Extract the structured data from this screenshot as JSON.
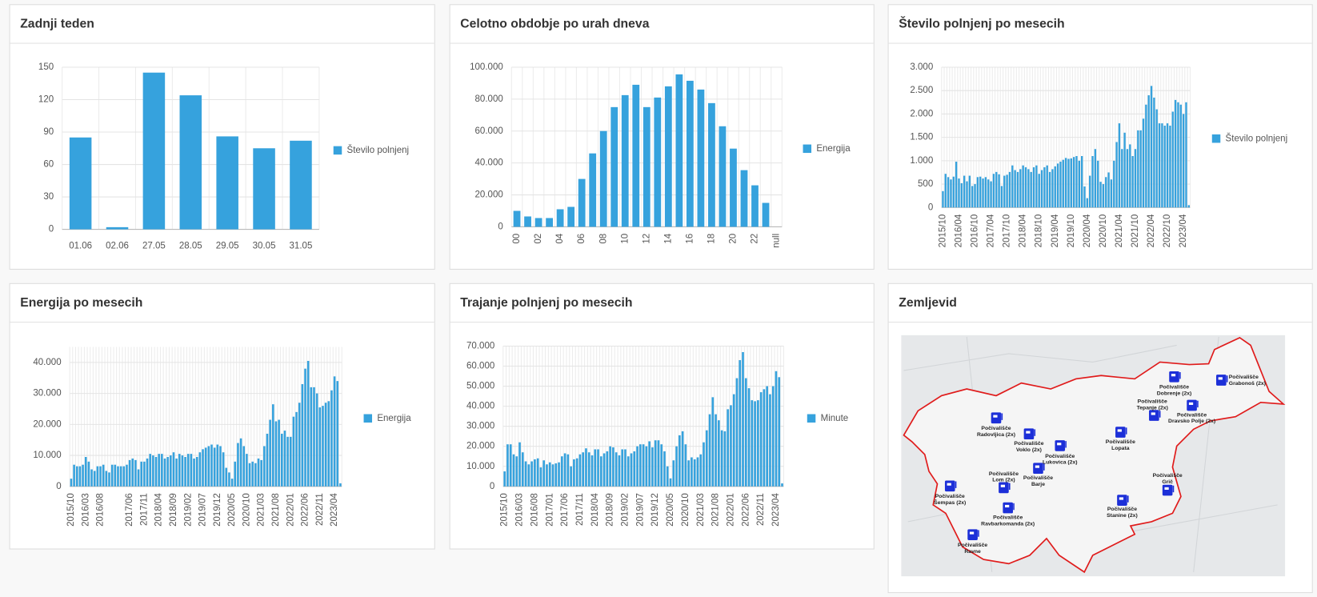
{
  "chart_data": [
    {
      "type": "bar",
      "title": "Zadnji teden",
      "categories": [
        "01.06",
        "02.06",
        "27.05",
        "28.05",
        "29.05",
        "30.05",
        "31.05"
      ],
      "series": [
        {
          "name": "Število polnjenj",
          "color": "#36a2dd",
          "values": [
            85,
            2,
            145,
            124,
            86,
            75,
            82
          ]
        }
      ],
      "ylim": [
        0,
        150
      ],
      "yticks": [
        0,
        30,
        60,
        90,
        120,
        150
      ],
      "grid": true,
      "legend": "right"
    },
    {
      "type": "bar",
      "title": "Celotno obdobje po urah dneva",
      "categories": [
        "00",
        null,
        "02",
        null,
        "04",
        null,
        "06",
        null,
        "08",
        null,
        "10",
        null,
        "12",
        null,
        "14",
        null,
        "16",
        null,
        "18",
        null,
        "20",
        null,
        "22",
        null,
        "null"
      ],
      "series": [
        {
          "name": "Energija",
          "color": "#36a2dd",
          "values": [
            10000,
            6500,
            5500,
            5500,
            11000,
            12500,
            30000,
            46000,
            60000,
            75000,
            82500,
            89000,
            75000,
            81000,
            88000,
            95500,
            91500,
            86000,
            77500,
            63000,
            49000,
            35500,
            26000,
            15000,
            0
          ]
        }
      ],
      "ylim": [
        0,
        100000
      ],
      "yticks": [
        0,
        {
          "value": 20000,
          "label": "20.000"
        },
        {
          "value": 40000,
          "label": "40.000"
        },
        {
          "value": 60000,
          "label": "60.000"
        },
        {
          "value": 80000,
          "label": "80.000"
        },
        {
          "value": 100000,
          "label": "100.000"
        }
      ],
      "grid": true,
      "legend": "right"
    },
    {
      "type": "bar",
      "title": "Število polnjenj po mesecih",
      "categories": [
        "2015/10",
        null,
        null,
        null,
        null,
        null,
        "2016/04",
        null,
        null,
        null,
        null,
        null,
        "2016/10",
        null,
        null,
        null,
        null,
        null,
        "2017/04",
        null,
        null,
        null,
        null,
        null,
        "2017/10",
        null,
        null,
        null,
        null,
        null,
        "2018/04",
        null,
        null,
        null,
        null,
        null,
        "2018/10",
        null,
        null,
        null,
        null,
        null,
        "2019/04",
        null,
        null,
        null,
        null,
        null,
        "2019/10",
        null,
        null,
        null,
        null,
        null,
        "2020/04",
        null,
        null,
        null,
        null,
        null,
        "2020/10",
        null,
        null,
        null,
        null,
        null,
        "2021/04",
        null,
        null,
        null,
        null,
        null,
        "2021/10",
        null,
        null,
        null,
        null,
        null,
        "2022/04",
        null,
        null,
        null,
        null,
        null,
        "2022/10",
        null,
        null,
        null,
        null,
        null,
        "2023/04",
        null,
        null
      ],
      "series": [
        {
          "name": "Število polnjenj",
          "color": "#36a2dd",
          "values": [
            350,
            720,
            650,
            600,
            660,
            980,
            620,
            520,
            680,
            560,
            680,
            460,
            500,
            650,
            660,
            620,
            650,
            600,
            560,
            720,
            760,
            710,
            460,
            680,
            700,
            760,
            900,
            800,
            760,
            820,
            900,
            860,
            820,
            760,
            860,
            900,
            720,
            800,
            860,
            900,
            760,
            820,
            880,
            940,
            980,
            1020,
            1060,
            1040,
            1050,
            1080,
            1100,
            1000,
            1100,
            450,
            200,
            680,
            1100,
            1250,
            1000,
            550,
            500,
            650,
            750,
            600,
            1000,
            1400,
            1800,
            1250,
            1600,
            1250,
            1350,
            1100,
            1250,
            1650,
            1650,
            1900,
            2200,
            2400,
            2600,
            2350,
            2100,
            1800,
            1800,
            1750,
            1800,
            1750,
            2050,
            2300,
            2250,
            2200,
            2000,
            2250,
            50
          ]
        }
      ],
      "ylim": [
        0,
        3000
      ],
      "yticks": [
        0,
        500,
        {
          "value": 1000,
          "label": "1.000"
        },
        {
          "value": 1500,
          "label": "1.500"
        },
        {
          "value": 2000,
          "label": "2.000"
        },
        {
          "value": 2500,
          "label": "2.500"
        },
        {
          "value": 3000,
          "label": "3.000"
        }
      ],
      "grid": true,
      "legend": "right"
    },
    {
      "type": "bar",
      "title": "Energija po mesecih",
      "categories": [
        "2015/10",
        null,
        null,
        null,
        null,
        "2016/03",
        null,
        null,
        null,
        null,
        "2016/08",
        null,
        null,
        null,
        null,
        null,
        null,
        null,
        null,
        null,
        "2017/06",
        null,
        null,
        null,
        null,
        "2017/11",
        null,
        null,
        null,
        null,
        "2018/04",
        null,
        null,
        null,
        null,
        "2018/09",
        null,
        null,
        null,
        null,
        "2019/02",
        null,
        null,
        null,
        null,
        "2019/07",
        null,
        null,
        null,
        null,
        "2019/12",
        null,
        null,
        null,
        null,
        "2020/05",
        null,
        null,
        null,
        null,
        "2020/10",
        null,
        null,
        null,
        null,
        "2021/03",
        null,
        null,
        null,
        null,
        "2021/08",
        null,
        null,
        null,
        null,
        "2022/01",
        null,
        null,
        null,
        null,
        "2022/06",
        null,
        null,
        null,
        null,
        "2022/11",
        null,
        null,
        null,
        null,
        "2023/04",
        null,
        null
      ],
      "series": [
        {
          "name": "Energija",
          "color": "#36a2dd",
          "values": [
            2500,
            7000,
            6500,
            6500,
            7000,
            9500,
            8000,
            5500,
            5000,
            6500,
            6500,
            7000,
            5000,
            4500,
            7000,
            7000,
            6500,
            6500,
            6500,
            7000,
            8500,
            9000,
            8500,
            5500,
            8000,
            8000,
            9000,
            10500,
            10000,
            9500,
            10500,
            10500,
            9000,
            9500,
            10000,
            11000,
            9000,
            10500,
            10000,
            9500,
            10500,
            10500,
            9000,
            9500,
            11000,
            12000,
            12500,
            13000,
            13500,
            12500,
            13500,
            13000,
            11000,
            6000,
            4500,
            2500,
            8000,
            14000,
            15500,
            13000,
            10500,
            7500,
            8000,
            7500,
            9000,
            8500,
            13000,
            17000,
            21500,
            26500,
            21000,
            21500,
            17000,
            18000,
            16000,
            16000,
            22500,
            24000,
            27000,
            33000,
            38000,
            40500,
            32000,
            32000,
            30000,
            25500,
            26000,
            27000,
            27500,
            31000,
            35500,
            34000,
            1000
          ]
        }
      ],
      "ylim": [
        0,
        45000
      ],
      "yticks": [
        0,
        {
          "value": 10000,
          "label": "10.000"
        },
        {
          "value": 20000,
          "label": "20.000"
        },
        {
          "value": 30000,
          "label": "30.000"
        },
        {
          "value": 40000,
          "label": "40.000"
        }
      ],
      "grid": true,
      "legend": "right"
    },
    {
      "type": "bar",
      "title": "Trajanje polnjenj po mesecih",
      "categories": [
        "2015/10",
        null,
        null,
        null,
        null,
        "2016/03",
        null,
        null,
        null,
        null,
        "2016/08",
        null,
        null,
        null,
        null,
        "2017/01",
        null,
        null,
        null,
        null,
        "2017/06",
        null,
        null,
        null,
        null,
        "2017/11",
        null,
        null,
        null,
        null,
        "2018/04",
        null,
        null,
        null,
        null,
        "2018/09",
        null,
        null,
        null,
        null,
        "2019/02",
        null,
        null,
        null,
        null,
        "2019/07",
        null,
        null,
        null,
        null,
        "2019/12",
        null,
        null,
        null,
        null,
        "2020/05",
        null,
        null,
        null,
        null,
        "2020/10",
        null,
        null,
        null,
        null,
        "2021/03",
        null,
        null,
        null,
        null,
        "2021/08",
        null,
        null,
        null,
        null,
        "2022/01",
        null,
        null,
        null,
        null,
        "2022/06",
        null,
        null,
        null,
        null,
        "2022/11",
        null,
        null,
        null,
        null,
        "2023/04",
        null,
        null
      ],
      "series": [
        {
          "name": "Minute",
          "color": "#36a2dd",
          "values": [
            7500,
            21000,
            21000,
            16000,
            15000,
            22000,
            17000,
            12500,
            11000,
            12500,
            13500,
            14000,
            9500,
            13000,
            11000,
            12000,
            11000,
            11500,
            12000,
            15000,
            16500,
            16000,
            10000,
            13500,
            14000,
            16000,
            17000,
            19000,
            17000,
            15500,
            18500,
            18500,
            15000,
            16500,
            17500,
            20000,
            19500,
            17000,
            15500,
            18500,
            18500,
            15000,
            16500,
            17500,
            20000,
            21000,
            21000,
            20000,
            22500,
            19500,
            23000,
            23000,
            21000,
            17500,
            10000,
            4000,
            13000,
            20000,
            25500,
            27500,
            21000,
            13000,
            14500,
            13500,
            14500,
            16000,
            22000,
            28000,
            36000,
            44500,
            36000,
            33000,
            28000,
            27500,
            38500,
            40500,
            46000,
            54000,
            63000,
            67000,
            54000,
            49000,
            43000,
            42500,
            43000,
            47000,
            48500,
            50000,
            46000,
            50000,
            57500,
            54500,
            1500
          ]
        }
      ],
      "ylim": [
        0,
        70000
      ],
      "yticks": [
        0,
        {
          "value": 10000,
          "label": "10.000"
        },
        {
          "value": 20000,
          "label": "20.000"
        },
        {
          "value": 30000,
          "label": "30.000"
        },
        {
          "value": 40000,
          "label": "40.000"
        },
        {
          "value": 50000,
          "label": "50.000"
        },
        {
          "value": 60000,
          "label": "60.000"
        },
        {
          "value": 70000,
          "label": "70.000"
        }
      ],
      "grid": true,
      "legend": "right"
    }
  ],
  "map": {
    "title": "Zemljevid",
    "markers": [
      {
        "lines": [
          "Počivališče",
          "Grabonoš (2x)"
        ]
      },
      {
        "lines": [
          "Počivališče",
          "Dobrenje (2x)"
        ]
      },
      {
        "lines": [
          "Počivališče",
          "Tepanje (2x)"
        ]
      },
      {
        "lines": [
          "Počivališče",
          "Dravsko Polje (2x)"
        ]
      },
      {
        "lines": [
          "Počivališče",
          "Radovljica (2x)"
        ]
      },
      {
        "lines": [
          "Počivališče",
          "Voklo (2x)"
        ]
      },
      {
        "lines": [
          "Počivališče",
          "Lukovica (2x)"
        ]
      },
      {
        "lines": [
          "Počivališče",
          "Lopata"
        ]
      },
      {
        "lines": [
          "Počivališče",
          "Lom (2x)"
        ]
      },
      {
        "lines": [
          "Počivališče",
          "Barje"
        ]
      },
      {
        "lines": [
          "Počivališče",
          "Šempas (2x)"
        ]
      },
      {
        "lines": [
          "Počivališče",
          "Ravbarkomanda (2x)"
        ]
      },
      {
        "lines": [
          "Počivališče",
          "Ravne"
        ]
      },
      {
        "lines": [
          "Počivališče",
          "Stanine (2x)"
        ]
      },
      {
        "lines": [
          "Počivališče",
          "Grič"
        ]
      }
    ]
  }
}
